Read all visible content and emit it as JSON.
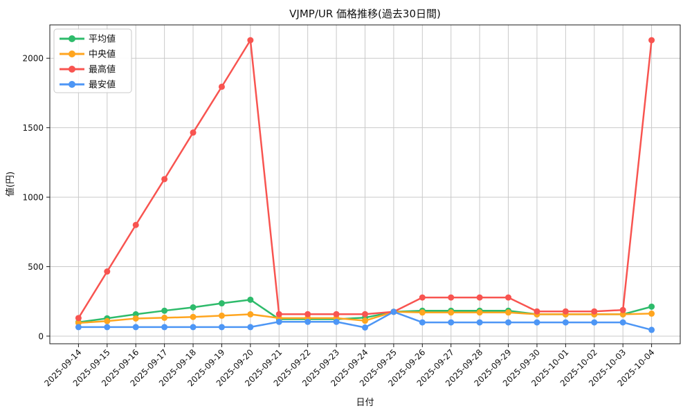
{
  "title": "VJMP/UR 価格推移(過去30日間)",
  "chart_data": {
    "type": "line",
    "title": "VJMP/UR 価格推移(過去30日間)",
    "xlabel": "日付",
    "ylabel": "値(円)",
    "grid": true,
    "legend_position": "upper-left",
    "background_color": "#ffffff",
    "grid_color": "#c9c9c9",
    "border_color": "#1a1a1a",
    "ylim": [
      -55,
      2240
    ],
    "yticks": [
      0,
      500,
      1000,
      1500,
      2000
    ],
    "categories": [
      "2025-09-14",
      "2025-09-15",
      "2025-09-16",
      "2025-09-17",
      "2025-09-18",
      "2025-09-19",
      "2025-09-20",
      "2025-09-21",
      "2025-09-22",
      "2025-09-23",
      "2025-09-24",
      "2025-09-25",
      "2025-09-26",
      "2025-09-27",
      "2025-09-28",
      "2025-09-29",
      "2025-09-30",
      "2025-10-01",
      "2025-10-02",
      "2025-10-03",
      "2025-10-04"
    ],
    "series": [
      {
        "name": "平均値",
        "color": "#2ebb6b",
        "values": [
          100,
          128,
          157,
          183,
          207,
          236,
          262,
          122,
          122,
          122,
          133,
          175,
          183,
          183,
          183,
          183,
          157,
          157,
          157,
          157,
          212
        ]
      },
      {
        "name": "中央値",
        "color": "#ffa51f",
        "values": [
          95,
          108,
          127,
          132,
          138,
          147,
          157,
          130,
          130,
          130,
          111,
          175,
          170,
          170,
          170,
          170,
          157,
          157,
          157,
          157,
          162
        ]
      },
      {
        "name": "最高値",
        "color": "#f85450",
        "values": [
          130,
          465,
          800,
          1130,
          1465,
          1795,
          2130,
          158,
          158,
          158,
          158,
          175,
          278,
          278,
          278,
          278,
          178,
          178,
          178,
          188,
          2130
        ]
      },
      {
        "name": "最安値",
        "color": "#4d96f5",
        "values": [
          65,
          65,
          65,
          65,
          65,
          65,
          65,
          103,
          103,
          103,
          62,
          175,
          99,
          99,
          99,
          99,
          99,
          99,
          99,
          99,
          45
        ]
      }
    ]
  }
}
